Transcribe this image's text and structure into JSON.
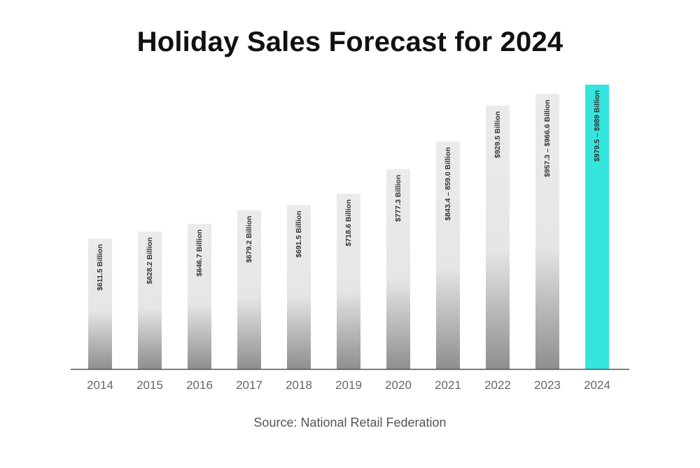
{
  "chart_data": {
    "type": "bar",
    "title": "Holiday Sales Forecast for 2024",
    "categories": [
      "2014",
      "2015",
      "2016",
      "2017",
      "2018",
      "2019",
      "2020",
      "2021",
      "2022",
      "2023",
      "2024"
    ],
    "values": [
      611.5,
      628.2,
      646.7,
      679.2,
      691.5,
      718.6,
      777.3,
      843.4,
      929.5,
      957.3,
      979.5
    ],
    "bar_labels": [
      "$611.5 Billion",
      "$628.2 Billion",
      "$646.7 Billion",
      "$679.2 Billion",
      "$691.5 Billion",
      "$718.6 Billion",
      "$777.3 Billion",
      "$843.4 – 859.0 Billion",
      "$929.5 Billion",
      "$957.3 – $966.6 Billion",
      "$979.5 – $989 Billion"
    ],
    "xlabel": "",
    "ylabel": "",
    "source": "Source: National Retail Federation",
    "colors": {
      "default_bar_top": "#ebebeb",
      "default_bar_bottom": "#8e8e8e",
      "highlight_bar": "#35e6de",
      "axis": "#555555",
      "tick_label": "#666666",
      "bar_label": "#333333"
    },
    "highlight_index": 10,
    "grid": false,
    "legend": "none"
  }
}
